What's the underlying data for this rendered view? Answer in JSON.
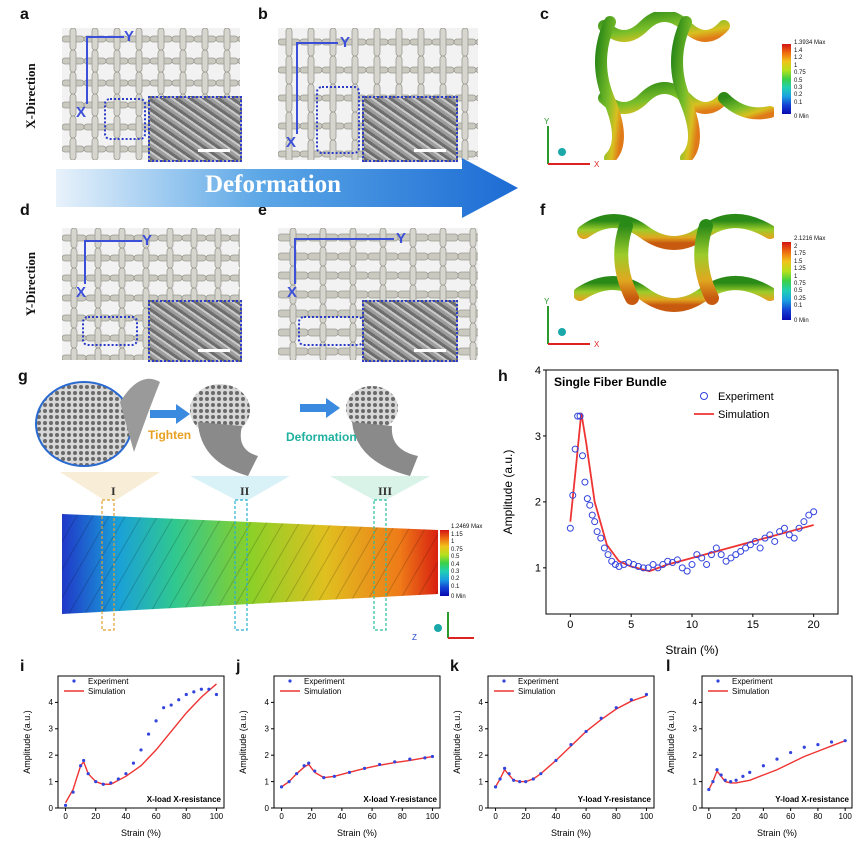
{
  "panel_labels": {
    "a": "a",
    "b": "b",
    "c": "c",
    "d": "d",
    "e": "e",
    "f": "f",
    "g": "g",
    "h": "h",
    "i": "i",
    "j": "j",
    "k": "k",
    "l": "l"
  },
  "row_titles": {
    "x": "X-Direction",
    "y": "Y-Direction"
  },
  "axis_letters": {
    "x": "X",
    "y": "Y",
    "z": "Z"
  },
  "deformation_arrow": "Deformation",
  "panel_g": {
    "tighten": "Tighten",
    "deformation": "Deformation",
    "stages": [
      "I",
      "II",
      "III"
    ]
  },
  "colorbar_c": {
    "max": "1.3934 Max",
    "ticks": [
      "1.4",
      "1.2",
      "1",
      "0.75",
      "0.5",
      "0.3",
      "0.2",
      "0.1"
    ],
    "min": "0 Min"
  },
  "colorbar_f": {
    "max": "2.1216 Max",
    "ticks": [
      "2",
      "1.75",
      "1.5",
      "1.25",
      "1",
      "0.75",
      "0.5",
      "0.25",
      "0.1"
    ],
    "min": "0 Min"
  },
  "colorbar_g": {
    "max": "1.2469 Max",
    "ticks": [
      "1.15",
      "1",
      "0.75",
      "0.5",
      "0.4",
      "0.3",
      "0.2",
      "0.1"
    ],
    "min": "0 Min"
  },
  "colors": {
    "experiment": "#3344dd",
    "simulation": "#ee3333",
    "arrow": "#2a7be0"
  },
  "chart_data": [
    {
      "type": "scatter",
      "panel": "h",
      "title": "Single Fiber Bundle",
      "xlabel": "Strain (%)",
      "ylabel": "Amplitude (a.u.)",
      "xlim": [
        -2,
        22
      ],
      "ylim": [
        0.3,
        4
      ],
      "xticks": [
        0,
        5,
        10,
        15,
        20
      ],
      "yticks": [
        1,
        2,
        3,
        4
      ],
      "series": [
        {
          "name": "Experiment",
          "style": "circles",
          "x": [
            0,
            0.2,
            0.4,
            0.6,
            0.8,
            1.0,
            1.2,
            1.4,
            1.6,
            1.8,
            2.0,
            2.2,
            2.5,
            2.8,
            3.1,
            3.4,
            3.7,
            4.0,
            4.4,
            4.8,
            5.2,
            5.6,
            6.0,
            6.4,
            6.8,
            7.2,
            7.6,
            8.0,
            8.4,
            8.8,
            9.2,
            9.6,
            10.0,
            10.4,
            10.8,
            11.2,
            11.6,
            12.0,
            12.4,
            12.8,
            13.2,
            13.6,
            14.0,
            14.4,
            14.8,
            15.2,
            15.6,
            16.0,
            16.4,
            16.8,
            17.2,
            17.6,
            18.0,
            18.4,
            18.8,
            19.2,
            19.6,
            20.0
          ],
          "y": [
            1.6,
            2.1,
            2.8,
            3.3,
            3.3,
            2.7,
            2.3,
            2.05,
            1.95,
            1.8,
            1.7,
            1.55,
            1.45,
            1.3,
            1.2,
            1.1,
            1.05,
            1.02,
            1.05,
            1.08,
            1.05,
            1.02,
            1.0,
            1.0,
            1.05,
            1.0,
            1.05,
            1.1,
            1.08,
            1.12,
            1.0,
            0.95,
            1.05,
            1.2,
            1.15,
            1.05,
            1.2,
            1.3,
            1.2,
            1.1,
            1.15,
            1.2,
            1.25,
            1.3,
            1.35,
            1.4,
            1.3,
            1.45,
            1.5,
            1.4,
            1.55,
            1.6,
            1.5,
            1.45,
            1.6,
            1.7,
            1.8,
            1.85
          ]
        },
        {
          "name": "Simulation",
          "style": "line",
          "x": [
            0,
            0.5,
            0.9,
            1.3,
            2,
            3,
            4,
            5,
            6.5,
            8,
            10,
            12,
            14,
            16,
            18,
            20
          ],
          "y": [
            1.7,
            2.6,
            3.35,
            2.9,
            2.0,
            1.35,
            1.1,
            1.02,
            0.95,
            1.05,
            1.15,
            1.25,
            1.35,
            1.45,
            1.55,
            1.65
          ]
        }
      ]
    },
    {
      "type": "scatter",
      "panel": "i",
      "annotation": "X-load X-resistance",
      "xlabel": "Strain (%)",
      "ylabel": "Amplitude (a.u.)",
      "xlim": [
        -5,
        105
      ],
      "ylim": [
        0,
        5
      ],
      "xticks": [
        0,
        20,
        40,
        60,
        80,
        100
      ],
      "yticks": [
        0,
        1,
        2,
        3,
        4
      ],
      "series": [
        {
          "name": "Experiment",
          "x": [
            0,
            5,
            10,
            12,
            15,
            20,
            25,
            30,
            35,
            40,
            45,
            50,
            55,
            60,
            65,
            70,
            75,
            80,
            85,
            90,
            95,
            100
          ],
          "y": [
            0.1,
            0.6,
            1.6,
            1.8,
            1.3,
            1.0,
            0.9,
            0.95,
            1.1,
            1.3,
            1.7,
            2.2,
            2.8,
            3.3,
            3.8,
            3.9,
            4.1,
            4.3,
            4.4,
            4.5,
            4.5,
            4.3
          ]
        },
        {
          "name": "Simulation",
          "x": [
            0,
            5,
            10,
            12,
            15,
            20,
            25,
            30,
            40,
            50,
            60,
            70,
            80,
            90,
            100
          ],
          "y": [
            0.2,
            0.7,
            1.6,
            1.75,
            1.3,
            1.0,
            0.9,
            0.9,
            1.2,
            1.6,
            2.2,
            2.9,
            3.6,
            4.2,
            4.7
          ]
        }
      ]
    },
    {
      "type": "scatter",
      "panel": "j",
      "annotation": "X-load Y-resistance",
      "xlabel": "Strain (%)",
      "ylabel": "Amplitude (a.u.)",
      "xlim": [
        -5,
        105
      ],
      "ylim": [
        0,
        5
      ],
      "xticks": [
        0,
        20,
        40,
        60,
        80,
        100
      ],
      "yticks": [
        0,
        1,
        2,
        3,
        4
      ],
      "series": [
        {
          "name": "Experiment",
          "x": [
            0,
            5,
            10,
            15,
            18,
            22,
            28,
            35,
            45,
            55,
            65,
            75,
            85,
            95,
            100
          ],
          "y": [
            0.8,
            1.0,
            1.3,
            1.6,
            1.7,
            1.4,
            1.15,
            1.2,
            1.35,
            1.5,
            1.65,
            1.75,
            1.85,
            1.9,
            1.95
          ]
        },
        {
          "name": "Simulation",
          "x": [
            0,
            5,
            10,
            15,
            18,
            22,
            28,
            35,
            45,
            55,
            65,
            75,
            85,
            95,
            100
          ],
          "y": [
            0.8,
            1.0,
            1.3,
            1.55,
            1.65,
            1.35,
            1.15,
            1.2,
            1.35,
            1.5,
            1.62,
            1.72,
            1.8,
            1.9,
            1.95
          ]
        }
      ]
    },
    {
      "type": "scatter",
      "panel": "k",
      "annotation": "Y-load Y-resistance",
      "xlabel": "Strain (%)",
      "ylabel": "Amplitude (a.u.)",
      "xlim": [
        -5,
        105
      ],
      "ylim": [
        0,
        5
      ],
      "xticks": [
        0,
        20,
        40,
        60,
        80,
        100
      ],
      "yticks": [
        0,
        1,
        2,
        3,
        4
      ],
      "series": [
        {
          "name": "Experiment",
          "x": [
            0,
            3,
            6,
            9,
            12,
            16,
            20,
            25,
            30,
            40,
            50,
            60,
            70,
            80,
            90,
            100
          ],
          "y": [
            0.8,
            1.1,
            1.5,
            1.3,
            1.05,
            1.0,
            1.0,
            1.1,
            1.3,
            1.8,
            2.4,
            2.9,
            3.4,
            3.8,
            4.1,
            4.3
          ]
        },
        {
          "name": "Simulation",
          "x": [
            0,
            3,
            6,
            9,
            12,
            16,
            20,
            25,
            30,
            40,
            50,
            60,
            70,
            80,
            90,
            100
          ],
          "y": [
            0.8,
            1.1,
            1.45,
            1.25,
            1.05,
            1.0,
            1.0,
            1.1,
            1.3,
            1.8,
            2.35,
            2.9,
            3.35,
            3.75,
            4.05,
            4.25
          ]
        }
      ]
    },
    {
      "type": "scatter",
      "panel": "l",
      "annotation": "Y-load X-resistance",
      "xlabel": "Strain (%)",
      "ylabel": "Amplitude (a.u.)",
      "xlim": [
        -5,
        105
      ],
      "ylim": [
        0,
        5
      ],
      "xticks": [
        0,
        20,
        40,
        60,
        80,
        100
      ],
      "yticks": [
        0,
        1,
        2,
        3,
        4
      ],
      "series": [
        {
          "name": "Experiment",
          "x": [
            0,
            3,
            6,
            9,
            12,
            16,
            20,
            25,
            30,
            40,
            50,
            60,
            70,
            80,
            90,
            100
          ],
          "y": [
            0.7,
            1.0,
            1.45,
            1.25,
            1.05,
            1.0,
            1.05,
            1.2,
            1.35,
            1.6,
            1.85,
            2.1,
            2.3,
            2.4,
            2.5,
            2.55
          ]
        },
        {
          "name": "Simulation",
          "x": [
            0,
            3,
            6,
            9,
            12,
            16,
            20,
            25,
            30,
            40,
            50,
            60,
            70,
            80,
            90,
            100
          ],
          "y": [
            0.7,
            1.0,
            1.4,
            1.2,
            1.0,
            0.95,
            0.95,
            1.0,
            1.05,
            1.25,
            1.45,
            1.7,
            1.95,
            2.15,
            2.35,
            2.55
          ]
        }
      ]
    }
  ]
}
